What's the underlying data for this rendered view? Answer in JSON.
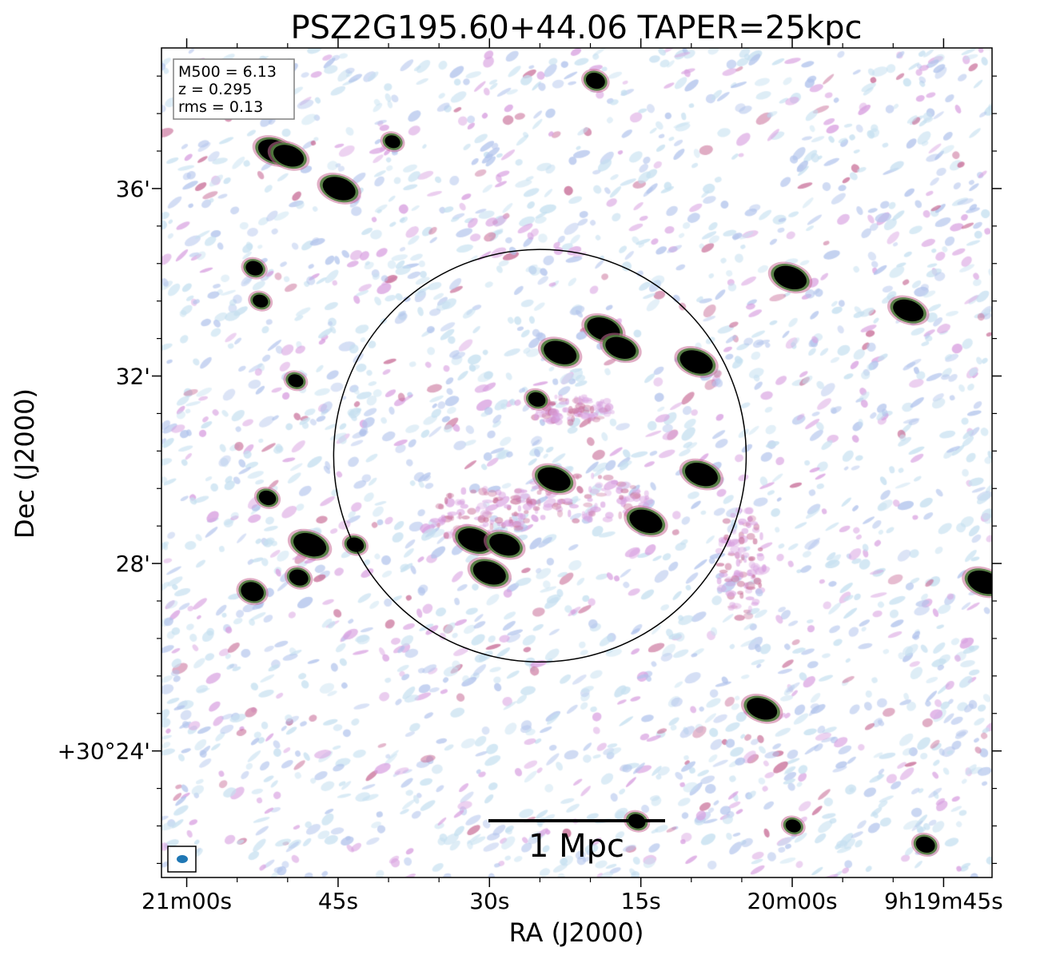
{
  "chart_data": {
    "type": "heatmap",
    "title": "PSZ2G195.60+44.06 TAPER=25kpc",
    "xlabel": "RA (J2000)",
    "ylabel": "Dec (J2000)",
    "x_ticks": [
      {
        "label": "21m00s",
        "ra_s": 60
      },
      {
        "label": "45s",
        "ra_s": 45
      },
      {
        "label": "30s",
        "ra_s": 30
      },
      {
        "label": "15s",
        "ra_s": 15
      },
      {
        "label": "20m00s",
        "ra_s": 0
      },
      {
        "label": "9h19m45s",
        "ra_s": -15
      }
    ],
    "y_ticks": [
      {
        "label": "+30°24'",
        "dec_arcmin": 24
      },
      {
        "label": "28'",
        "dec_arcmin": 28
      },
      {
        "label": "32'",
        "dec_arcmin": 32
      },
      {
        "label": "36'",
        "dec_arcmin": 36
      }
    ],
    "ra_range_s_east_to_west": [
      62.5,
      -19.8
    ],
    "dec_range_arcmin": [
      21.3,
      39.0
    ],
    "info_box": [
      "M500 = 6.13",
      "z = 0.295",
      "rms = 0.13"
    ],
    "scale_bar_label": "1 Mpc",
    "circle": {
      "center_ra_s": 25.0,
      "center_dec_arcmin": 30.3,
      "radius_arcmin": 4.4
    },
    "beam": {
      "color": "#1f77b4"
    },
    "colormap": [
      "#ffffff",
      "#c6e0f0",
      "#b2c4ec",
      "#d8a0e0",
      "#c86e98",
      "#4a7a3a",
      "#000000"
    ],
    "sources": [
      {
        "ra_s": 51.3,
        "dec_arcmin": 36.8,
        "strength": 1.0
      },
      {
        "ra_s": 49.9,
        "dec_arcmin": 36.7,
        "strength": 0.9
      },
      {
        "ra_s": 44.9,
        "dec_arcmin": 36.0,
        "strength": 1.0
      },
      {
        "ra_s": 39.6,
        "dec_arcmin": 37.0,
        "strength": 0.4
      },
      {
        "ra_s": 19.5,
        "dec_arcmin": 38.3,
        "strength": 0.6
      },
      {
        "ra_s": 0.2,
        "dec_arcmin": 34.1,
        "strength": 1.0
      },
      {
        "ra_s": -11.5,
        "dec_arcmin": 33.4,
        "strength": 0.9
      },
      {
        "ra_s": 18.7,
        "dec_arcmin": 33.0,
        "strength": 1.0
      },
      {
        "ra_s": 17.0,
        "dec_arcmin": 32.6,
        "strength": 0.9
      },
      {
        "ra_s": 23.0,
        "dec_arcmin": 32.5,
        "strength": 1.0
      },
      {
        "ra_s": 9.5,
        "dec_arcmin": 32.3,
        "strength": 1.0
      },
      {
        "ra_s": 25.3,
        "dec_arcmin": 31.5,
        "strength": 0.5
      },
      {
        "ra_s": 23.6,
        "dec_arcmin": 29.8,
        "strength": 1.0
      },
      {
        "ra_s": 9.0,
        "dec_arcmin": 29.9,
        "strength": 1.0
      },
      {
        "ra_s": 14.5,
        "dec_arcmin": 28.9,
        "strength": 1.0
      },
      {
        "ra_s": 30.0,
        "dec_arcmin": 27.8,
        "strength": 1.0
      },
      {
        "ra_s": 31.5,
        "dec_arcmin": 28.5,
        "strength": 1.0
      },
      {
        "ra_s": 28.5,
        "dec_arcmin": 28.4,
        "strength": 0.9
      },
      {
        "ra_s": 47.8,
        "dec_arcmin": 28.4,
        "strength": 1.0
      },
      {
        "ra_s": 43.3,
        "dec_arcmin": 28.4,
        "strength": 0.5
      },
      {
        "ra_s": 52.0,
        "dec_arcmin": 29.4,
        "strength": 0.5
      },
      {
        "ra_s": 53.5,
        "dec_arcmin": 27.4,
        "strength": 0.8
      },
      {
        "ra_s": 48.9,
        "dec_arcmin": 27.7,
        "strength": 0.6
      },
      {
        "ra_s": -19.0,
        "dec_arcmin": 27.6,
        "strength": 1.0
      },
      {
        "ra_s": 3.0,
        "dec_arcmin": 24.9,
        "strength": 0.9
      },
      {
        "ra_s": 15.4,
        "dec_arcmin": 22.5,
        "strength": 0.5
      },
      {
        "ra_s": -13.2,
        "dec_arcmin": 22.0,
        "strength": 0.6
      },
      {
        "ra_s": 49.2,
        "dec_arcmin": 31.9,
        "strength": 0.4
      },
      {
        "ra_s": 53.3,
        "dec_arcmin": 34.3,
        "strength": 0.5
      },
      {
        "ra_s": 52.7,
        "dec_arcmin": 33.6,
        "strength": 0.4
      },
      {
        "ra_s": -0.1,
        "dec_arcmin": 22.4,
        "strength": 0.4
      }
    ]
  }
}
